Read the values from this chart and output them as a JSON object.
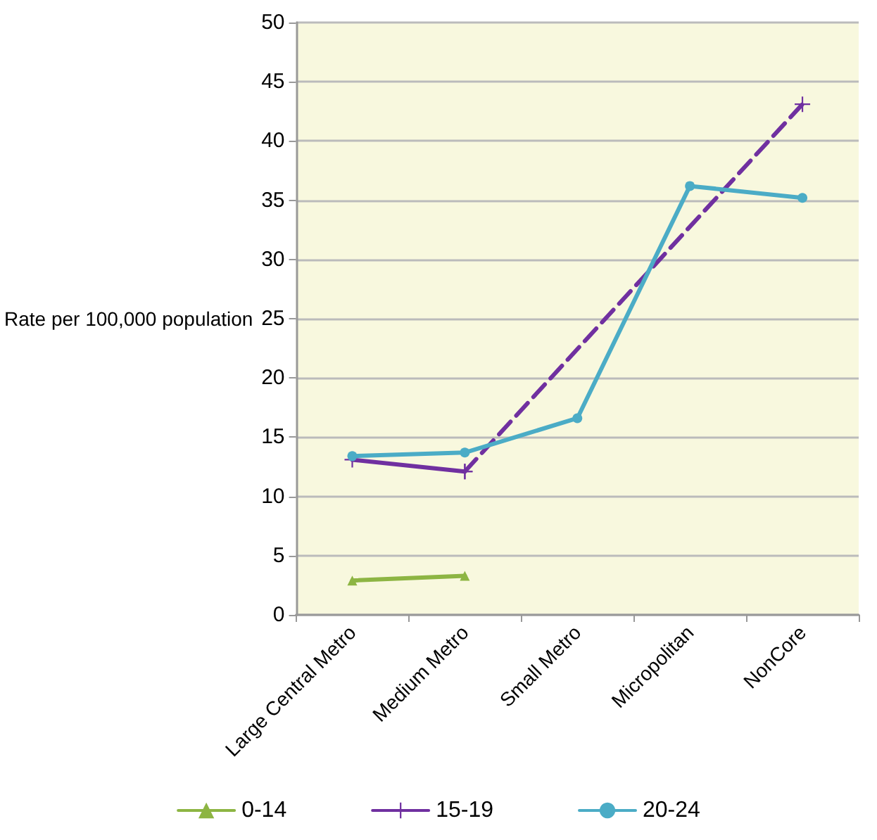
{
  "chart_data": {
    "type": "line",
    "ylabel": "Rate per 100,000 population",
    "categories": [
      "Large Central Metro",
      "Medium Metro",
      "Small Metro",
      "Micropolitan",
      "NonCore"
    ],
    "ylim": [
      0,
      50
    ],
    "yticks": [
      0,
      5,
      10,
      15,
      20,
      25,
      30,
      35,
      40,
      45,
      50
    ],
    "grid": "y",
    "legend": "bottom",
    "series": [
      {
        "name": "0-14",
        "color": "#8db543",
        "marker": "triangle",
        "values": [
          2.9,
          3.3,
          null,
          null,
          null
        ]
      },
      {
        "name": "15-19",
        "color": "#7030a0",
        "marker": "cross",
        "values": [
          13.1,
          12.1,
          null,
          null,
          null
        ]
      },
      {
        "color": "#7030a0",
        "marker": "cross",
        "line_style": "dashed",
        "x": [
          "Medium Metro",
          "NonCore"
        ],
        "values": [
          12.1,
          43.1
        ]
      },
      {
        "name": "20-24",
        "color": "#4bacc6",
        "marker": "circle",
        "values": [
          13.4,
          13.7,
          16.6,
          36.2,
          35.2
        ]
      }
    ]
  }
}
